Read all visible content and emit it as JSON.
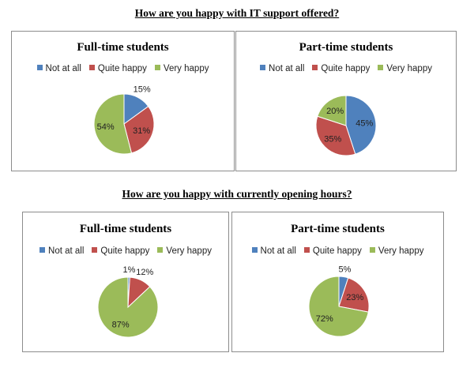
{
  "sections": [
    {
      "title": "How are you happy with IT support offered?"
    },
    {
      "title": "How are you happy with currently opening hours?"
    }
  ],
  "legend_labels": [
    "Not at all",
    "Quite happy",
    "Very happy"
  ],
  "colors": {
    "not_at_all": "#4f81bd",
    "quite_happy": "#c0504d",
    "very_happy": "#9bbb59"
  },
  "chart_data": [
    {
      "type": "pie",
      "section": "How are you happy with IT support offered?",
      "title": "Full-time students",
      "categories": [
        "Not at all",
        "Quite happy",
        "Very happy"
      ],
      "values": [
        15,
        31,
        54
      ],
      "labels": [
        "15%",
        "31%",
        "54%"
      ],
      "legend": "top"
    },
    {
      "type": "pie",
      "section": "How are you happy with IT support offered?",
      "title": "Part-time students",
      "categories": [
        "Not at all",
        "Quite happy",
        "Very happy"
      ],
      "values": [
        45,
        35,
        20
      ],
      "labels": [
        "45%",
        "35%",
        "20%"
      ],
      "legend": "top"
    },
    {
      "type": "pie",
      "section": "How are you happy with currently opening hours?",
      "title": "Full-time students",
      "categories": [
        "Not at all",
        "Quite happy",
        "Very happy"
      ],
      "values": [
        1,
        12,
        87
      ],
      "labels": [
        "1%",
        "12%",
        "87%"
      ],
      "legend": "top"
    },
    {
      "type": "pie",
      "section": "How are you happy with currently opening hours?",
      "title": "Part-time students",
      "categories": [
        "Not at all",
        "Quite happy",
        "Very happy"
      ],
      "values": [
        5,
        23,
        72
      ],
      "labels": [
        "5%",
        "23%",
        "72%"
      ],
      "legend": "top"
    }
  ]
}
